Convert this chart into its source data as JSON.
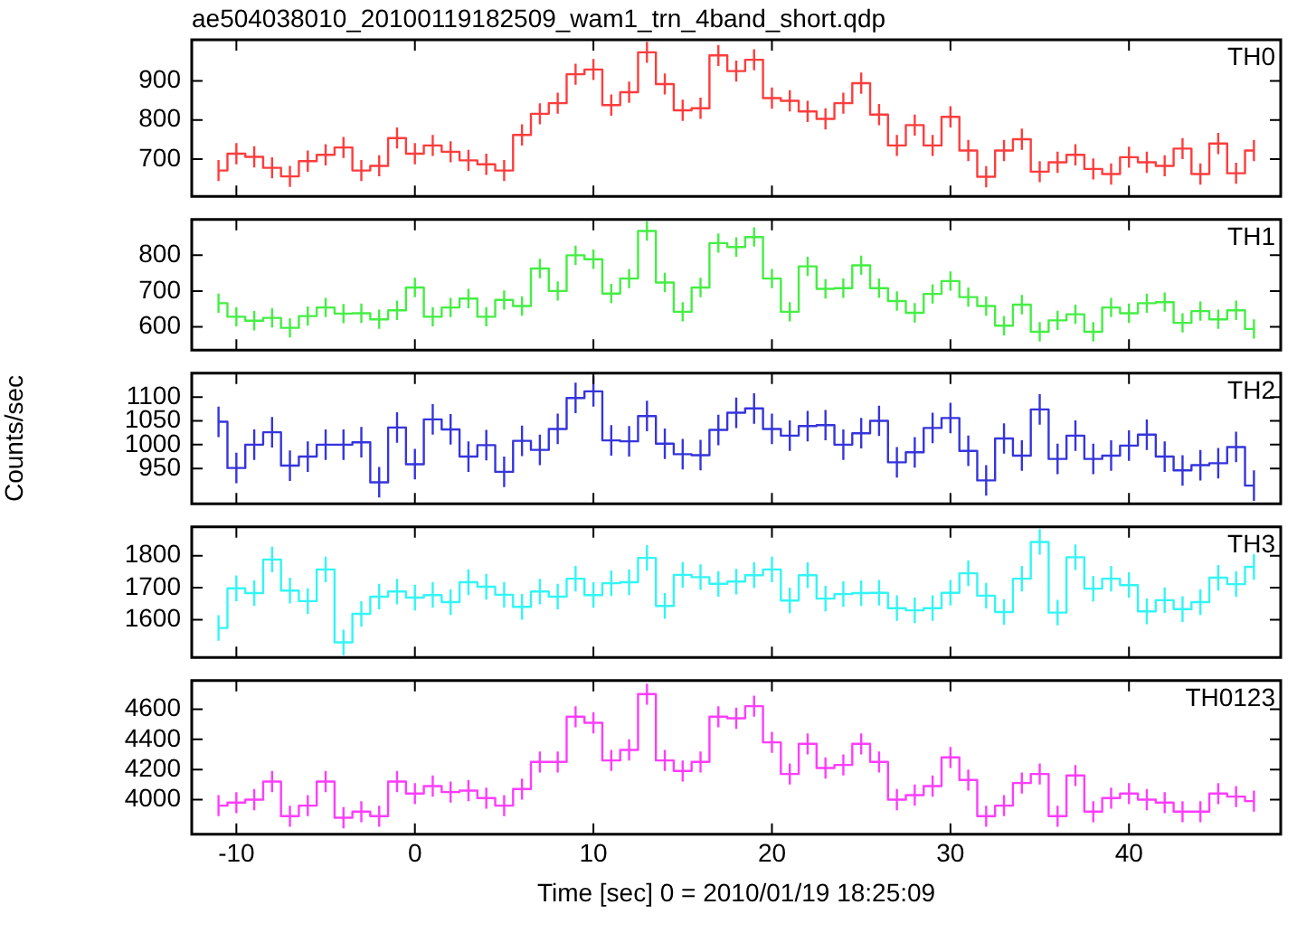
{
  "chart_data": [
    {
      "type": "step",
      "title": "ae504038010_20100119182509_wam1_trn_4band_short.qdp",
      "tick_labels": "y",
      "grid": false,
      "marker": "none",
      "xlim": [
        -12.5,
        48.5
      ],
      "xticks": [
        -10,
        0,
        10,
        20,
        30,
        40
      ],
      "ylim": [
        605,
        1005
      ],
      "yticks": [
        700,
        800,
        900
      ],
      "x": [
        -11,
        -10,
        -9,
        -8,
        -7,
        -6,
        -5,
        -4,
        -3,
        -2,
        -1,
        0,
        1,
        2,
        3,
        4,
        5,
        6,
        7,
        8,
        9,
        10,
        11,
        12,
        13,
        14,
        15,
        16,
        17,
        18,
        19,
        20,
        21,
        22,
        23,
        24,
        25,
        26,
        27,
        28,
        29,
        30,
        31,
        32,
        33,
        34,
        35,
        36,
        37,
        38,
        39,
        40,
        41,
        42,
        43,
        44,
        45,
        46,
        47
      ],
      "series": [
        {
          "name": "TH0",
          "color": "#ff3c3c",
          "values": [
            671,
            714,
            706,
            678,
            656,
            695,
            711,
            730,
            671,
            683,
            754,
            714,
            735,
            719,
            697,
            687,
            671,
            762,
            816,
            843,
            917,
            929,
            838,
            871,
            973,
            892,
            825,
            830,
            965,
            925,
            954,
            856,
            849,
            822,
            803,
            843,
            894,
            814,
            735,
            787,
            735,
            808,
            722,
            655,
            722,
            751,
            668,
            692,
            711,
            675,
            662,
            705,
            692,
            683,
            727,
            662,
            740,
            664,
            722
          ],
          "errors": [
            27,
            27,
            27,
            27,
            27,
            27,
            27,
            27,
            27,
            27,
            27,
            27,
            27,
            27,
            27,
            27,
            27,
            27,
            27,
            27,
            27,
            27,
            27,
            27,
            27,
            27,
            27,
            27,
            27,
            27,
            27,
            27,
            27,
            27,
            27,
            27,
            27,
            27,
            27,
            27,
            27,
            27,
            27,
            27,
            27,
            27,
            27,
            27,
            27,
            27,
            27,
            27,
            27,
            27,
            27,
            27,
            27,
            27,
            27
          ]
        }
      ]
    },
    {
      "type": "step",
      "tick_labels": "y",
      "grid": false,
      "marker": "none",
      "xlim": [
        -12.5,
        48.5
      ],
      "xticks": [
        -10,
        0,
        10,
        20,
        30,
        40
      ],
      "ylim": [
        535,
        900
      ],
      "yticks": [
        600,
        700,
        800
      ],
      "x": [
        -11,
        -10,
        -9,
        -8,
        -7,
        -6,
        -5,
        -4,
        -3,
        -2,
        -1,
        0,
        1,
        2,
        3,
        4,
        5,
        6,
        7,
        8,
        9,
        10,
        11,
        12,
        13,
        14,
        15,
        16,
        17,
        18,
        19,
        20,
        21,
        22,
        23,
        24,
        25,
        26,
        27,
        28,
        29,
        30,
        31,
        32,
        33,
        34,
        35,
        36,
        37,
        38,
        39,
        40,
        41,
        42,
        43,
        44,
        45,
        46,
        47
      ],
      "series": [
        {
          "name": "TH1",
          "color": "#44ee44",
          "values": [
            666,
            628,
            617,
            625,
            597,
            630,
            654,
            637,
            638,
            621,
            646,
            710,
            628,
            654,
            679,
            628,
            675,
            658,
            763,
            700,
            800,
            789,
            693,
            735,
            868,
            724,
            642,
            710,
            834,
            823,
            851,
            735,
            642,
            769,
            706,
            708,
            772,
            708,
            672,
            639,
            692,
            728,
            683,
            658,
            603,
            662,
            586,
            618,
            635,
            586,
            654,
            638,
            666,
            669,
            611,
            644,
            621,
            646,
            594
          ],
          "errors": [
            27,
            27,
            27,
            27,
            27,
            27,
            27,
            27,
            27,
            27,
            27,
            27,
            27,
            27,
            27,
            27,
            27,
            27,
            27,
            27,
            27,
            27,
            27,
            27,
            27,
            27,
            27,
            27,
            27,
            27,
            27,
            27,
            27,
            27,
            27,
            27,
            27,
            27,
            27,
            27,
            27,
            27,
            27,
            27,
            27,
            27,
            27,
            27,
            27,
            27,
            27,
            27,
            27,
            27,
            27,
            27,
            27,
            27,
            27
          ]
        }
      ]
    },
    {
      "type": "step",
      "ylabel": "Counts/sec",
      "tick_labels": "y",
      "grid": false,
      "marker": "none",
      "xlim": [
        -12.5,
        48.5
      ],
      "xticks": [
        -10,
        0,
        10,
        20,
        30,
        40
      ],
      "ylim": [
        876,
        1150
      ],
      "yticks": [
        950,
        1000,
        1050,
        1100
      ],
      "x": [
        -11,
        -10,
        -9,
        -8,
        -7,
        -6,
        -5,
        -4,
        -3,
        -2,
        -1,
        0,
        1,
        2,
        3,
        4,
        5,
        6,
        7,
        8,
        9,
        10,
        11,
        12,
        13,
        14,
        15,
        16,
        17,
        18,
        19,
        20,
        21,
        22,
        23,
        24,
        25,
        26,
        27,
        28,
        29,
        30,
        31,
        32,
        33,
        34,
        35,
        36,
        37,
        38,
        39,
        40,
        41,
        42,
        43,
        44,
        45,
        46,
        47
      ],
      "series": [
        {
          "name": "TH2",
          "color": "#3535dd",
          "values": [
            1048,
            951,
            1000,
            1026,
            956,
            975,
            1000,
            1000,
            1005,
            921,
            1036,
            959,
            1053,
            1032,
            975,
            999,
            943,
            1008,
            989,
            1033,
            1098,
            1112,
            1009,
            1007,
            1060,
            1002,
            980,
            978,
            1031,
            1067,
            1076,
            1033,
            1019,
            1039,
            1041,
            1000,
            1024,
            1050,
            963,
            984,
            1035,
            1056,
            987,
            925,
            1013,
            977,
            1074,
            970,
            1019,
            970,
            977,
            998,
            1021,
            975,
            946,
            957,
            961,
            995,
            914
          ],
          "errors": [
            32,
            32,
            32,
            32,
            32,
            32,
            32,
            32,
            32,
            32,
            32,
            32,
            32,
            32,
            32,
            32,
            32,
            32,
            32,
            32,
            32,
            32,
            32,
            32,
            32,
            32,
            32,
            32,
            32,
            32,
            32,
            32,
            32,
            32,
            32,
            32,
            32,
            32,
            32,
            32,
            32,
            32,
            32,
            32,
            32,
            32,
            32,
            32,
            32,
            32,
            32,
            32,
            32,
            32,
            32,
            32,
            32,
            32,
            32
          ]
        }
      ]
    },
    {
      "type": "step",
      "tick_labels": "y",
      "grid": false,
      "marker": "none",
      "xlim": [
        -12.5,
        48.5
      ],
      "xticks": [
        -10,
        0,
        10,
        20,
        30,
        40
      ],
      "ylim": [
        1482,
        1890
      ],
      "yticks": [
        1600,
        1700,
        1800
      ],
      "x": [
        -11,
        -10,
        -9,
        -8,
        -7,
        -6,
        -5,
        -4,
        -3,
        -2,
        -1,
        0,
        1,
        2,
        3,
        4,
        5,
        6,
        7,
        8,
        9,
        10,
        11,
        12,
        13,
        14,
        15,
        16,
        17,
        18,
        19,
        20,
        21,
        22,
        23,
        24,
        25,
        26,
        27,
        28,
        29,
        30,
        31,
        32,
        33,
        34,
        35,
        36,
        37,
        38,
        39,
        40,
        41,
        42,
        43,
        44,
        45,
        46,
        47
      ],
      "series": [
        {
          "name": "TH3",
          "color": "#33f5f5",
          "values": [
            1574,
            1698,
            1683,
            1788,
            1691,
            1658,
            1757,
            1529,
            1618,
            1672,
            1688,
            1669,
            1677,
            1655,
            1717,
            1703,
            1678,
            1640,
            1688,
            1672,
            1728,
            1677,
            1714,
            1717,
            1793,
            1643,
            1740,
            1733,
            1712,
            1719,
            1739,
            1757,
            1660,
            1739,
            1666,
            1680,
            1683,
            1684,
            1636,
            1629,
            1636,
            1684,
            1745,
            1675,
            1624,
            1728,
            1843,
            1622,
            1795,
            1697,
            1728,
            1708,
            1626,
            1661,
            1633,
            1655,
            1731,
            1711,
            1765
          ],
          "errors": [
            40,
            40,
            40,
            40,
            40,
            40,
            40,
            40,
            40,
            40,
            40,
            40,
            40,
            40,
            40,
            40,
            40,
            40,
            40,
            40,
            40,
            40,
            40,
            40,
            40,
            40,
            40,
            40,
            40,
            40,
            40,
            40,
            40,
            40,
            40,
            40,
            40,
            40,
            40,
            40,
            40,
            40,
            40,
            40,
            40,
            40,
            40,
            40,
            40,
            40,
            40,
            40,
            40,
            40,
            40,
            40,
            40,
            40,
            40
          ]
        }
      ]
    },
    {
      "type": "step",
      "xlabel": "Time [sec] 0 = 2010/01/19 18:25:09",
      "grid": false,
      "marker": "none",
      "xlim": [
        -12.5,
        48.5
      ],
      "xticks": [
        -10,
        0,
        10,
        20,
        30,
        40
      ],
      "ylim": [
        3770,
        4790
      ],
      "yticks": [
        4000,
        4200,
        4400,
        4600
      ],
      "x": [
        -11,
        -10,
        -9,
        -8,
        -7,
        -6,
        -5,
        -4,
        -3,
        -2,
        -1,
        0,
        1,
        2,
        3,
        4,
        5,
        6,
        7,
        8,
        9,
        10,
        11,
        12,
        13,
        14,
        15,
        16,
        17,
        18,
        19,
        20,
        21,
        22,
        23,
        24,
        25,
        26,
        27,
        28,
        29,
        30,
        31,
        32,
        33,
        34,
        35,
        36,
        37,
        38,
        39,
        40,
        41,
        42,
        43,
        44,
        45,
        46,
        47
      ],
      "series": [
        {
          "name": "TH0123",
          "color": "#ff3cff",
          "values": [
            3960,
            3980,
            4000,
            4120,
            3890,
            3960,
            4120,
            3880,
            3920,
            3890,
            4120,
            4040,
            4090,
            4050,
            4060,
            4010,
            3960,
            4070,
            4250,
            4250,
            4550,
            4510,
            4260,
            4330,
            4700,
            4260,
            4190,
            4250,
            4550,
            4540,
            4620,
            4380,
            4170,
            4370,
            4210,
            4230,
            4370,
            4250,
            4000,
            4030,
            4090,
            4280,
            4130,
            3890,
            3960,
            4110,
            4170,
            3890,
            4160,
            3920,
            4010,
            4040,
            4000,
            3980,
            3920,
            3920,
            4040,
            4020,
            3990
          ],
          "errors": [
            70,
            70,
            70,
            70,
            70,
            70,
            70,
            70,
            70,
            70,
            70,
            70,
            70,
            70,
            70,
            70,
            70,
            70,
            70,
            70,
            70,
            70,
            70,
            70,
            70,
            70,
            70,
            70,
            70,
            70,
            70,
            70,
            70,
            70,
            70,
            70,
            70,
            70,
            70,
            70,
            70,
            70,
            70,
            70,
            70,
            70,
            70,
            70,
            70,
            70,
            70,
            70,
            70,
            70,
            70,
            70,
            70,
            70,
            70
          ]
        }
      ]
    }
  ]
}
